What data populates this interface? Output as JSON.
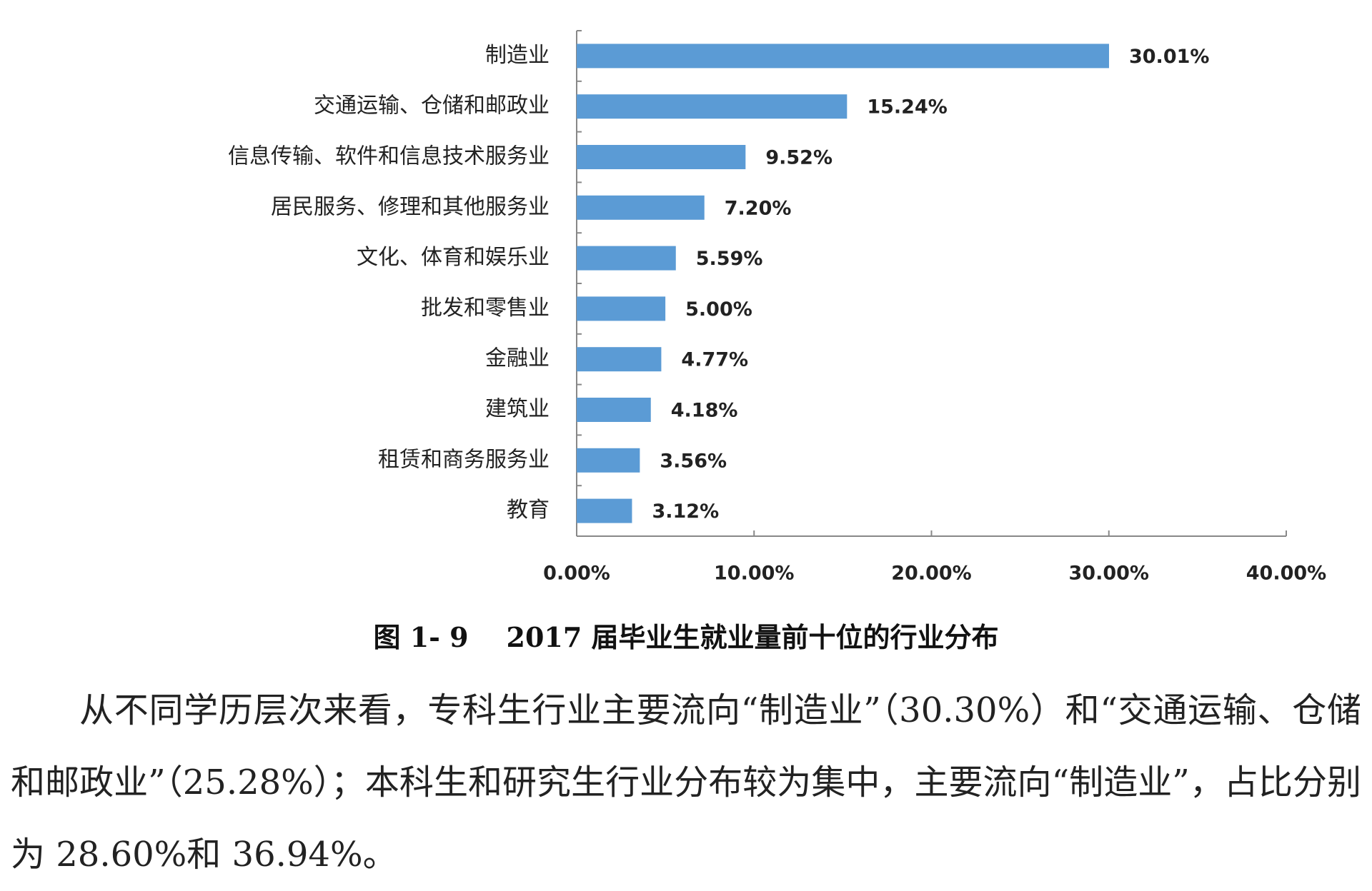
{
  "chart_data": {
    "type": "bar",
    "orientation": "horizontal",
    "categories": [
      "制造业",
      "交通运输、仓储和邮政业",
      "信息传输、软件和信息技术服务业",
      "居民服务、修理和其他服务业",
      "文化、体育和娱乐业",
      "批发和零售业",
      "金融业",
      "建筑业",
      "租赁和商务服务业",
      "教育"
    ],
    "values": [
      30.01,
      15.24,
      9.52,
      7.2,
      5.59,
      5.0,
      4.77,
      4.18,
      3.56,
      3.12
    ],
    "value_labels": [
      "30.01%",
      "15.24%",
      "9.52%",
      "7.20%",
      "5.59%",
      "5.00%",
      "4.77%",
      "4.18%",
      "3.56%",
      "3.12%"
    ],
    "color": "#5b9bd5",
    "xlim": [
      0,
      40
    ],
    "xticks": [
      {
        "value": 0,
        "label": "0.00%"
      },
      {
        "value": 10,
        "label": "10.00%"
      },
      {
        "value": 20,
        "label": "20.00%"
      },
      {
        "value": 30,
        "label": "30.00%"
      },
      {
        "value": 40,
        "label": "40.00%"
      }
    ]
  },
  "caption": "图 1- 9    2017 届毕业生就业量前十位的行业分布",
  "paragraph": "从不同学历层次来看，专科生行业主要流向“制造业”（30.30%）和“交通运输、仓储和邮政业”（25.28%）；本科生和研究生行业分布较为集中，主要流向“制造业”，占比分别为 28.60%和 36.94%。"
}
